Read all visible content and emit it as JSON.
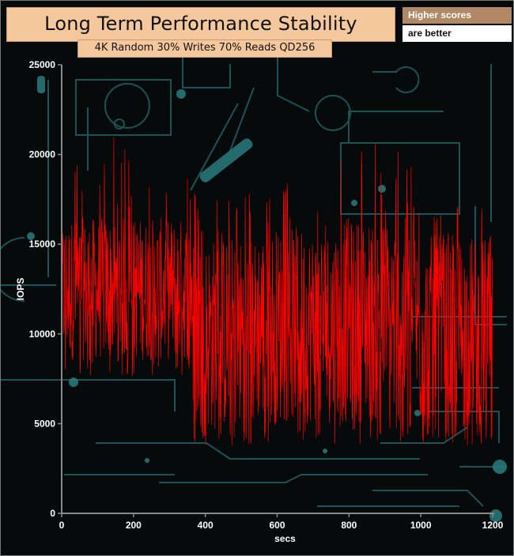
{
  "chart_data": {
    "type": "line",
    "title": "Long Term Performance Stability",
    "subtitle": "4K Random 30% Writes 70% Reads QD256",
    "xlabel": "secs",
    "ylabel": "IOPS",
    "xlim": [
      0,
      1200
    ],
    "ylim": [
      0,
      25000
    ],
    "x_ticks": [
      0,
      200,
      400,
      600,
      800,
      1000,
      1200
    ],
    "y_ticks": [
      0,
      5000,
      10000,
      15000,
      20000,
      25000
    ],
    "grid": false,
    "legend": "none",
    "series": [
      {
        "color": "#ff0000",
        "sampling_interval_secs": 1,
        "segments": [
          {
            "x_start": 0,
            "x_end": 365,
            "min": 7600,
            "max": 21000,
            "typical_low": 8500,
            "typical_high": 16500
          },
          {
            "x_start": 365,
            "x_end": 540,
            "min": 3800,
            "max": 18000,
            "typical_low": 4500,
            "typical_high": 15500
          },
          {
            "x_start": 540,
            "x_end": 760,
            "min": 3900,
            "max": 18500,
            "typical_low": 5000,
            "typical_high": 16000
          },
          {
            "x_start": 760,
            "x_end": 990,
            "min": 3900,
            "max": 20700,
            "typical_low": 5000,
            "typical_high": 16500
          },
          {
            "x_start": 990,
            "x_end": 1200,
            "min": 3800,
            "max": 17500,
            "typical_low": 4500,
            "typical_high": 15500
          }
        ]
      }
    ]
  },
  "badge": {
    "line1": "Higher scores",
    "line2": "are better"
  },
  "colors": {
    "background": "#060a0b",
    "circuit": "#1f6066",
    "title_bg": "#f4c89c",
    "badge_bg": "#b08866",
    "axis": "#8a8a8a",
    "series": "#ff0000"
  }
}
